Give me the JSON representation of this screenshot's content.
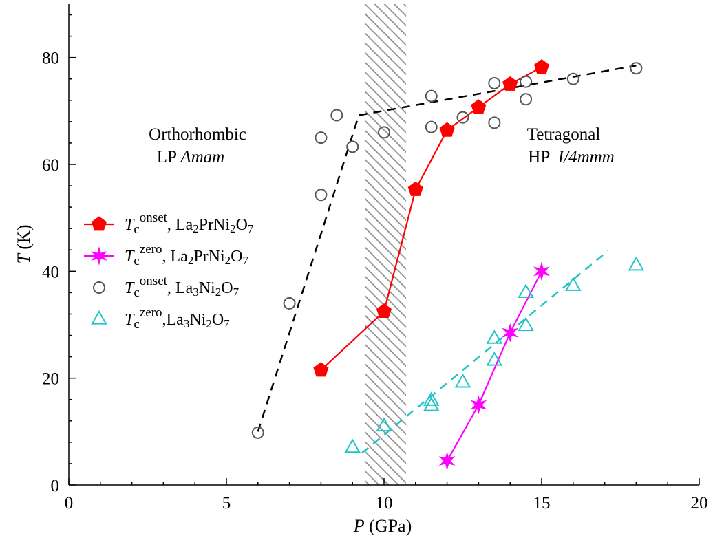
{
  "chart_data": {
    "type": "scatter",
    "title": "",
    "xlabel": {
      "symbol": "P",
      "unit": " (GPa)"
    },
    "ylabel": {
      "symbol": "T",
      "unit": " (K)"
    },
    "xlim": [
      0,
      20
    ],
    "ylim": [
      0,
      90
    ],
    "xticks": [
      0,
      5,
      10,
      15,
      20
    ],
    "yticks": [
      0,
      20,
      40,
      60,
      80
    ],
    "xtick_labels": [
      "0",
      "5",
      "10",
      "15",
      "20"
    ],
    "ytick_labels": [
      "0",
      "20",
      "40",
      "60",
      "80"
    ],
    "grid": false,
    "legend_position": "left",
    "shaded_band": {
      "x": [
        9.4,
        10.7
      ],
      "pattern": "hatched"
    },
    "regions": {
      "left": {
        "line1": "Orthorhombic",
        "line2_prefix": "LP ",
        "line2_italic": "Amam"
      },
      "right": {
        "line1": "Tetragonal",
        "line2_prefix": "HP  ",
        "line2_italic": "I/4mmm"
      }
    },
    "series": [
      {
        "name": "Tc onset, La2PrNi2O7",
        "legend": {
          "sym": "T",
          "sub": "c",
          "sup": "onset",
          "pre": ", La",
          "n1": "2",
          "mid": "PrNi",
          "n2": "2",
          "o": "O",
          "n3": "7"
        },
        "marker": "pentagon",
        "color": "#ff0000",
        "filled": true,
        "connect": "solid",
        "points": [
          [
            8,
            21.5
          ],
          [
            10,
            32.5
          ],
          [
            11,
            55.3
          ],
          [
            12,
            66.4
          ],
          [
            13,
            70.7
          ],
          [
            14,
            75.0
          ],
          [
            15,
            78.2
          ]
        ]
      },
      {
        "name": "Tc zero, La2PrNi2O7",
        "legend": {
          "sym": "T",
          "sub": "c",
          "sup": "zero",
          "pre": ", La",
          "n1": "2",
          "mid": "PrNi",
          "n2": "2",
          "o": "O",
          "n3": "7"
        },
        "marker": "star",
        "color": "#ff00ff",
        "filled": true,
        "connect": "solid",
        "points": [
          [
            12,
            4.5
          ],
          [
            13,
            15.0
          ],
          [
            14,
            28.5
          ],
          [
            15,
            40.0
          ]
        ]
      },
      {
        "name": "Tc onset, La3Ni2O7",
        "legend": {
          "sym": "T",
          "sub": "c",
          "sup": "onset",
          "pre": ", La",
          "n1": "3",
          "mid": "Ni",
          "n2": "2",
          "o": "O",
          "n3": "7"
        },
        "marker": "circle",
        "color": "#555555",
        "filled": false,
        "connect": "none",
        "points": [
          [
            6,
            9.8
          ],
          [
            7,
            34.0
          ],
          [
            8,
            54.3
          ],
          [
            8,
            65.0
          ],
          [
            8.5,
            69.2
          ],
          [
            9,
            63.3
          ],
          [
            10,
            66.0
          ],
          [
            11.5,
            67.0
          ],
          [
            11.5,
            72.8
          ],
          [
            12.5,
            68.8
          ],
          [
            13.5,
            67.8
          ],
          [
            13.5,
            75.2
          ],
          [
            14.5,
            75.5
          ],
          [
            14.5,
            72.2
          ],
          [
            16,
            76.0
          ],
          [
            18,
            78.0
          ]
        ]
      },
      {
        "name": "Tc zero, La3Ni2O7",
        "legend": {
          "sym": "T",
          "sub": "c",
          "sup": "zero",
          "pre": ",La",
          "n1": "3",
          "mid": "Ni",
          "n2": "2",
          "o": "O",
          "n3": "7"
        },
        "marker": "triangle",
        "color": "#1fc4c4",
        "filled": false,
        "connect": "none",
        "points": [
          [
            9,
            7.0
          ],
          [
            10,
            11.0
          ],
          [
            11.5,
            14.8
          ],
          [
            11.5,
            15.8
          ],
          [
            12.5,
            19.2
          ],
          [
            13.5,
            23.3
          ],
          [
            13.5,
            27.4
          ],
          [
            14.5,
            29.8
          ],
          [
            14.5,
            36.0
          ],
          [
            16,
            37.3
          ],
          [
            18,
            41.1
          ]
        ]
      }
    ],
    "trend_lines": [
      {
        "color": "#000000",
        "style": "dashed",
        "points": [
          [
            6,
            10
          ],
          [
            9.2,
            69.2
          ],
          [
            18,
            78.5
          ]
        ]
      },
      {
        "color": "#1fc4c4",
        "style": "dashed",
        "points": [
          [
            9.3,
            6.0
          ],
          [
            17.1,
            43.8
          ]
        ]
      }
    ]
  }
}
